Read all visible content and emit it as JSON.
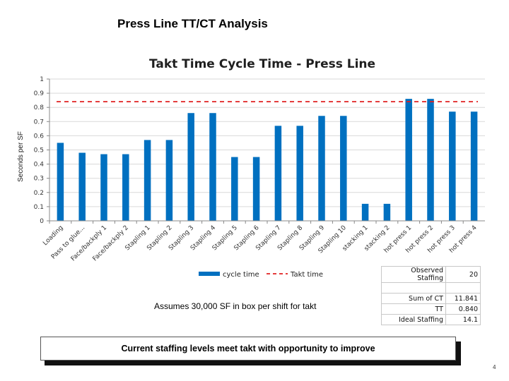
{
  "slide": {
    "title": "Press Line TT/CT Analysis",
    "note": "Assumes 30,000 SF in box per shift for takt",
    "callout": "Current staffing levels meet takt  with opportunity to improve",
    "page_number": "4"
  },
  "stats_table": [
    {
      "label": "Observed Staffing",
      "value": "20"
    },
    {
      "label": "",
      "value": ""
    },
    {
      "label": "Sum of CT",
      "value": "11.841"
    },
    {
      "label": "TT",
      "value": "0.840"
    },
    {
      "label": "Ideal Staffing",
      "value": "14.1"
    }
  ],
  "chart_data": {
    "type": "bar",
    "title": "Takt Time Cycle Time - Press Line",
    "xlabel": "",
    "ylabel": "Seconds  per  SF",
    "ylim": [
      0,
      1
    ],
    "yticks": [
      "0",
      "0.1",
      "0.2",
      "0.3",
      "0.4",
      "0.5",
      "0.6",
      "0.7",
      "0.8",
      "0.9",
      "1"
    ],
    "grid": true,
    "legend_position": "bottom",
    "categories": [
      "Loading",
      "Pass to glue...",
      "Face/backply 1",
      "Face/backply 2",
      "Stapling 1",
      "Stapling 2",
      "Stapling 3",
      "Stapling 4",
      "Stapling 5",
      "Stapling 6",
      "Stapling 7",
      "Stapling 8",
      "Stapling 9",
      "Stapling 10",
      "stacking  1",
      "stacking  2",
      "hot press 1",
      "hot press 2",
      "hot press 3",
      "hot press 4"
    ],
    "series": [
      {
        "name": "cycle time",
        "type": "bar",
        "color": "#0070c0",
        "values": [
          0.55,
          0.48,
          0.47,
          0.47,
          0.57,
          0.57,
          0.76,
          0.76,
          0.45,
          0.45,
          0.67,
          0.67,
          0.74,
          0.74,
          0.12,
          0.12,
          0.86,
          0.86,
          0.77,
          0.77
        ]
      }
    ],
    "reference_lines": [
      {
        "name": "Takt time",
        "value": 0.84,
        "color": "#e02020",
        "style": "dashed"
      }
    ]
  }
}
